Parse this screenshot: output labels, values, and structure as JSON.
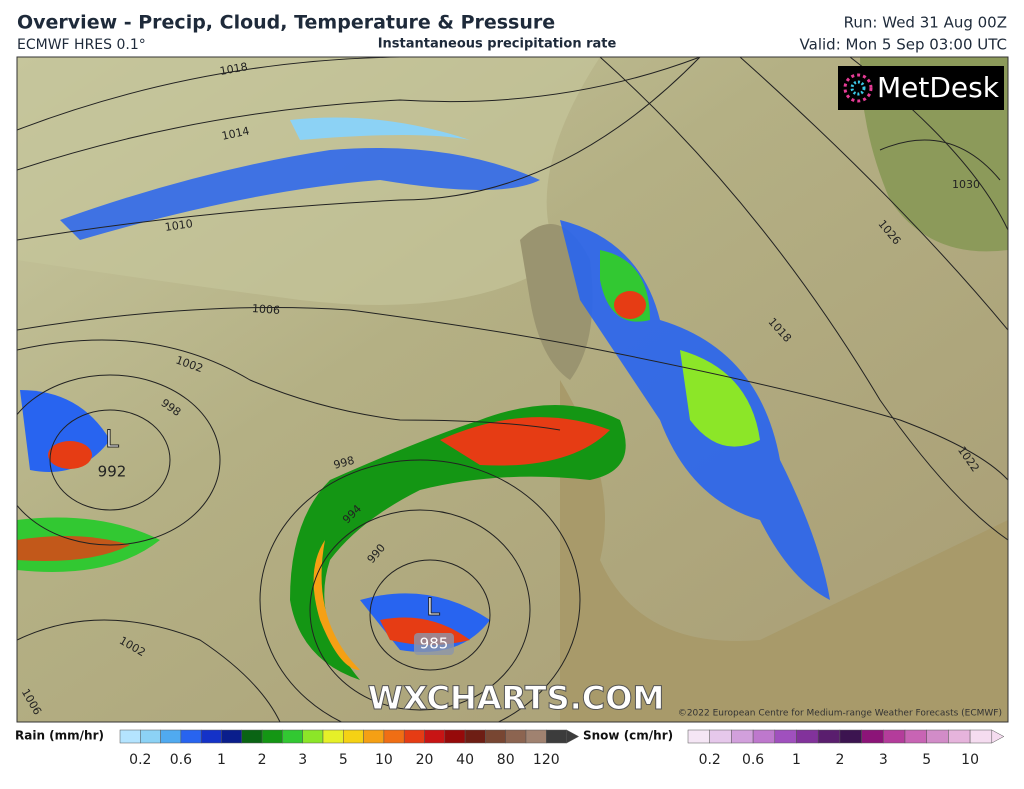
{
  "header": {
    "title": "Overview - Precip, Cloud, Temperature & Pressure",
    "model": "ECMWF HRES 0.1°",
    "layer": "Instantaneous precipitation rate",
    "run": "Run: Wed 31 Aug 00Z",
    "valid": "Valid: Mon 5 Sep 03:00 UTC"
  },
  "map": {
    "logo": "MetDesk",
    "watermark": "WXCHARTS.COM",
    "copyright": "©2022 European Centre for Medium-range Weather Forecasts (ECMWF)",
    "isobar_labels": [
      "1018",
      "1014",
      "1010",
      "1006",
      "1002",
      "998",
      "998",
      "994",
      "990",
      "1002",
      "1006",
      "1026",
      "1018",
      "1022",
      "1030"
    ],
    "pressure_centers": [
      {
        "symbol": "L",
        "value": "992"
      },
      {
        "symbol": "L",
        "value": "985"
      }
    ]
  },
  "legend": {
    "rain": {
      "label": "Rain (mm/hr)",
      "ticks": [
        "0.2",
        "0.6",
        "1",
        "2",
        "3",
        "5",
        "10",
        "20",
        "40",
        "80",
        "120"
      ],
      "colors": [
        "#b4e4ff",
        "#8cd2f5",
        "#50aaf0",
        "#2864f0",
        "#1432c8",
        "#0a1e8c",
        "#0a6414",
        "#149614",
        "#32c832",
        "#8ce628",
        "#e6f028",
        "#f5d214",
        "#f5a014",
        "#f06e14",
        "#e63c14",
        "#c81414",
        "#960a0a",
        "#6e1e14",
        "#784632",
        "#8c6450",
        "#a08270",
        "#3c3c3c"
      ]
    },
    "snow": {
      "label": "Snow (cm/hr)",
      "ticks": [
        "0.2",
        "0.6",
        "1",
        "2",
        "3",
        "5",
        "10"
      ],
      "colors": [
        "#f5e6f5",
        "#e6c8eb",
        "#d2a0dc",
        "#be78cd",
        "#a050be",
        "#82329b",
        "#5a1e6e",
        "#3c1450",
        "#8c1478",
        "#b43c9b",
        "#c864b4",
        "#d28cc8",
        "#e6b4dc",
        "#f5dcf0"
      ]
    }
  }
}
